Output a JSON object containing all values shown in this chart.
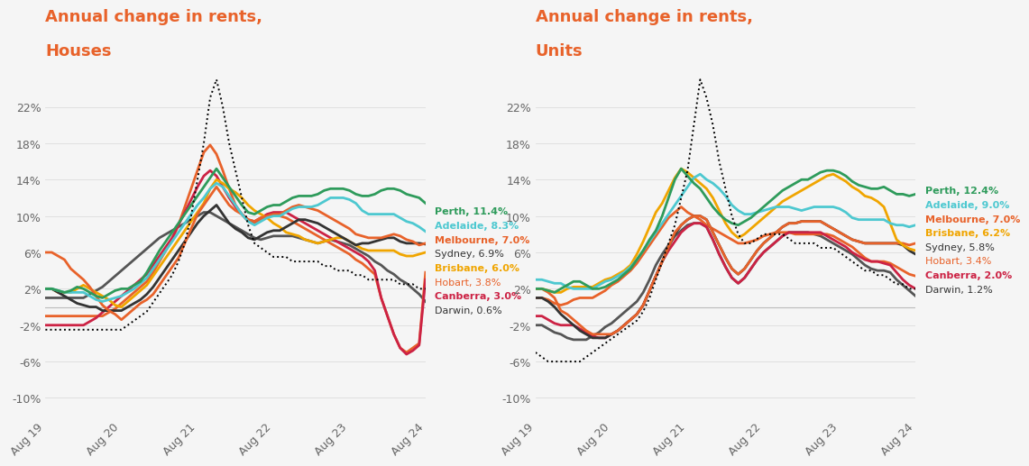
{
  "title_houses": "Annual change in rents,\nHouses",
  "title_units": "Annual change in rents,\nUnits",
  "title_color": "#E8622A",
  "bg_color": "#F5F5F5",
  "x_labels": [
    "Aug 19",
    "Aug 20",
    "Aug 21",
    "Aug 22",
    "Aug 23",
    "Aug 24"
  ],
  "ylim": [
    -12,
    26
  ],
  "yticks": [
    -10,
    -6,
    -2,
    2,
    6,
    10,
    14,
    18,
    22
  ],
  "legend_h": [
    [
      "Perth, 11.4%",
      "#2E9B5B",
      true
    ],
    [
      "Adelaide, 8.3%",
      "#4DC8D0",
      true
    ],
    [
      "Melbourne, 7.0%",
      "#E8622A",
      true
    ],
    [
      "Sydney, 6.9%",
      "#333333",
      false
    ],
    [
      "Brisbane, 6.0%",
      "#F0A500",
      true
    ],
    [
      "Hobart, 3.8%",
      "#E8622A",
      false
    ],
    [
      "Canberra, 3.0%",
      "#CC2244",
      true
    ],
    [
      "Darwin, 0.6%",
      "#333333",
      false
    ]
  ],
  "legend_u": [
    [
      "Perth, 12.4%",
      "#2E9B5B",
      true
    ],
    [
      "Adelaide, 9.0%",
      "#4DC8D0",
      true
    ],
    [
      "Melbourne, 7.0%",
      "#E8622A",
      true
    ],
    [
      "Brisbane, 6.2%",
      "#F0A500",
      true
    ],
    [
      "Sydney, 5.8%",
      "#333333",
      false
    ],
    [
      "Hobart, 3.4%",
      "#E8622A",
      false
    ],
    [
      "Canberra, 2.0%",
      "#CC2244",
      true
    ],
    [
      "Darwin, 1.2%",
      "#333333",
      false
    ]
  ],
  "n_points": 61,
  "houses": {
    "Perth": [
      2.0,
      2.0,
      1.8,
      1.6,
      1.8,
      2.2,
      2.0,
      1.6,
      1.2,
      1.0,
      1.4,
      1.8,
      2.0,
      2.0,
      2.4,
      2.8,
      3.8,
      5.0,
      6.2,
      7.2,
      8.2,
      9.2,
      10.2,
      11.2,
      12.2,
      13.2,
      14.2,
      15.2,
      14.2,
      13.2,
      12.2,
      11.2,
      10.4,
      10.2,
      10.6,
      11.0,
      11.2,
      11.2,
      11.6,
      12.0,
      12.2,
      12.2,
      12.2,
      12.4,
      12.8,
      13.0,
      13.0,
      13.0,
      12.8,
      12.4,
      12.2,
      12.2,
      12.4,
      12.8,
      13.0,
      13.0,
      12.8,
      12.4,
      12.2,
      12.0,
      11.4
    ],
    "Adelaide": [
      2.0,
      2.0,
      1.8,
      1.6,
      1.6,
      1.6,
      1.6,
      1.2,
      0.8,
      0.6,
      0.8,
      1.0,
      1.2,
      1.6,
      2.0,
      2.6,
      3.2,
      4.2,
      5.2,
      6.2,
      7.2,
      8.2,
      9.2,
      10.2,
      11.2,
      12.0,
      13.0,
      13.6,
      13.2,
      12.2,
      11.2,
      10.2,
      9.4,
      9.0,
      9.4,
      9.8,
      10.0,
      10.0,
      10.4,
      10.8,
      11.0,
      11.0,
      11.0,
      11.2,
      11.6,
      12.0,
      12.0,
      12.0,
      11.8,
      11.4,
      10.6,
      10.2,
      10.2,
      10.2,
      10.2,
      10.2,
      9.8,
      9.4,
      9.2,
      8.8,
      8.3
    ],
    "Melbourne": [
      6.0,
      6.0,
      5.6,
      5.2,
      4.2,
      3.6,
      3.0,
      2.2,
      1.2,
      0.2,
      -0.4,
      -0.8,
      -1.4,
      -0.8,
      -0.2,
      0.4,
      0.8,
      1.4,
      2.4,
      3.4,
      4.4,
      5.4,
      7.0,
      8.6,
      10.2,
      11.2,
      12.2,
      13.2,
      12.2,
      11.2,
      10.6,
      10.2,
      9.6,
      9.4,
      9.8,
      10.0,
      10.2,
      10.2,
      10.6,
      11.0,
      11.2,
      11.0,
      10.8,
      10.6,
      10.2,
      9.8,
      9.4,
      9.0,
      8.6,
      8.0,
      7.8,
      7.6,
      7.6,
      7.6,
      7.8,
      8.0,
      7.8,
      7.4,
      7.2,
      6.8,
      7.0
    ],
    "Sydney": [
      2.0,
      2.0,
      1.6,
      1.2,
      0.8,
      0.4,
      0.2,
      0.0,
      0.0,
      -0.4,
      -0.4,
      -0.4,
      -0.4,
      0.0,
      0.4,
      0.8,
      1.4,
      2.2,
      3.2,
      4.2,
      5.2,
      6.2,
      7.2,
      8.2,
      9.2,
      10.0,
      10.6,
      11.2,
      10.2,
      9.2,
      8.6,
      8.2,
      7.6,
      7.4,
      7.8,
      8.2,
      8.4,
      8.4,
      8.8,
      9.2,
      9.6,
      9.6,
      9.4,
      9.2,
      8.8,
      8.4,
      8.0,
      7.6,
      7.2,
      6.8,
      7.0,
      7.0,
      7.2,
      7.4,
      7.6,
      7.6,
      7.2,
      7.0,
      7.0,
      7.0,
      6.9
    ],
    "Brisbane": [
      2.0,
      2.0,
      1.6,
      1.6,
      1.6,
      2.0,
      2.4,
      2.0,
      1.6,
      1.2,
      0.8,
      0.2,
      0.0,
      0.6,
      1.2,
      1.8,
      2.4,
      3.4,
      4.4,
      5.4,
      6.4,
      7.4,
      8.4,
      9.4,
      10.4,
      11.4,
      13.0,
      14.0,
      13.6,
      13.0,
      12.6,
      12.0,
      11.2,
      10.6,
      10.2,
      9.8,
      9.2,
      8.8,
      8.2,
      8.0,
      7.8,
      7.4,
      7.2,
      7.0,
      7.2,
      7.4,
      7.6,
      7.6,
      7.2,
      6.8,
      6.4,
      6.2,
      6.2,
      6.2,
      6.2,
      6.2,
      5.8,
      5.6,
      5.6,
      5.8,
      6.0
    ],
    "Hobart": [
      -1.0,
      -1.0,
      -1.0,
      -1.0,
      -1.0,
      -1.0,
      -1.0,
      -1.0,
      -1.0,
      -1.0,
      -0.6,
      -0.2,
      0.4,
      1.0,
      1.6,
      2.2,
      2.8,
      3.8,
      5.0,
      6.2,
      7.4,
      9.0,
      11.0,
      13.0,
      15.0,
      17.0,
      17.8,
      16.8,
      15.0,
      13.0,
      11.2,
      10.2,
      9.4,
      9.2,
      9.6,
      10.0,
      10.2,
      10.0,
      9.8,
      9.4,
      9.0,
      8.6,
      8.2,
      7.8,
      7.4,
      7.0,
      6.6,
      6.2,
      5.8,
      5.2,
      4.8,
      4.2,
      3.6,
      1.0,
      -1.0,
      -3.0,
      -4.5,
      -5.0,
      -4.5,
      -4.0,
      3.8
    ],
    "Canberra": [
      -2.0,
      -2.0,
      -2.0,
      -2.0,
      -2.0,
      -2.0,
      -2.0,
      -1.6,
      -1.2,
      -0.6,
      0.0,
      0.6,
      1.2,
      1.8,
      2.4,
      3.0,
      3.6,
      4.6,
      5.6,
      6.6,
      7.6,
      9.0,
      10.4,
      11.8,
      13.2,
      14.4,
      15.0,
      14.4,
      13.2,
      12.0,
      11.0,
      10.2,
      9.6,
      9.4,
      9.8,
      10.2,
      10.4,
      10.4,
      10.4,
      10.0,
      9.6,
      9.2,
      8.8,
      8.4,
      8.0,
      7.6,
      7.2,
      6.8,
      6.4,
      6.0,
      5.6,
      5.0,
      4.0,
      1.0,
      -1.0,
      -3.0,
      -4.5,
      -5.2,
      -4.8,
      -4.2,
      3.0
    ],
    "Darwin": [
      1.0,
      1.0,
      1.0,
      1.0,
      1.0,
      1.0,
      1.0,
      1.4,
      1.8,
      2.2,
      2.8,
      3.4,
      4.0,
      4.6,
      5.2,
      5.8,
      6.4,
      7.0,
      7.6,
      8.0,
      8.4,
      8.8,
      9.2,
      9.6,
      10.0,
      10.4,
      10.4,
      10.0,
      9.6,
      9.2,
      8.8,
      8.4,
      8.0,
      7.6,
      7.4,
      7.6,
      7.8,
      7.8,
      7.8,
      7.8,
      7.6,
      7.4,
      7.2,
      7.0,
      7.2,
      7.4,
      7.2,
      7.0,
      6.8,
      6.4,
      6.0,
      5.6,
      5.0,
      4.6,
      4.0,
      3.6,
      3.0,
      2.6,
      2.0,
      1.4,
      0.6
    ]
  },
  "units": {
    "Perth": [
      2.0,
      2.0,
      1.8,
      1.6,
      2.0,
      2.4,
      2.8,
      2.8,
      2.4,
      2.0,
      2.0,
      2.2,
      2.6,
      3.0,
      3.6,
      4.2,
      5.2,
      6.2,
      7.4,
      8.4,
      10.0,
      12.0,
      14.0,
      15.2,
      14.4,
      13.6,
      13.0,
      12.0,
      11.0,
      10.2,
      9.6,
      9.2,
      9.0,
      9.4,
      9.8,
      10.4,
      11.0,
      11.6,
      12.2,
      12.8,
      13.2,
      13.6,
      14.0,
      14.0,
      14.4,
      14.8,
      15.0,
      15.0,
      14.8,
      14.4,
      13.8,
      13.4,
      13.2,
      13.0,
      13.0,
      13.2,
      12.8,
      12.4,
      12.4,
      12.2,
      12.4
    ],
    "Adelaide": [
      3.0,
      3.0,
      2.8,
      2.6,
      2.6,
      2.2,
      2.0,
      2.0,
      2.0,
      2.0,
      2.4,
      2.8,
      3.0,
      3.4,
      3.8,
      4.4,
      5.2,
      6.2,
      7.2,
      8.2,
      9.2,
      10.2,
      11.2,
      12.2,
      13.2,
      14.2,
      14.6,
      14.0,
      13.6,
      13.0,
      12.2,
      11.2,
      10.6,
      10.2,
      10.2,
      10.4,
      10.6,
      10.8,
      11.0,
      11.0,
      11.0,
      10.8,
      10.6,
      10.8,
      11.0,
      11.0,
      11.0,
      11.0,
      10.8,
      10.4,
      9.8,
      9.6,
      9.6,
      9.6,
      9.6,
      9.6,
      9.2,
      9.0,
      9.0,
      8.8,
      9.0
    ],
    "Melbourne": [
      2.0,
      2.0,
      1.6,
      1.0,
      -0.4,
      -0.8,
      -1.4,
      -2.0,
      -2.6,
      -3.0,
      -3.0,
      -3.0,
      -3.0,
      -2.6,
      -2.0,
      -1.4,
      -0.8,
      0.2,
      1.8,
      3.4,
      5.0,
      6.6,
      8.2,
      9.0,
      9.6,
      10.0,
      10.0,
      9.6,
      8.2,
      6.8,
      5.4,
      4.2,
      3.6,
      4.2,
      5.2,
      6.2,
      7.0,
      7.6,
      8.2,
      8.8,
      9.2,
      9.2,
      9.4,
      9.4,
      9.4,
      9.4,
      9.0,
      8.6,
      8.2,
      7.8,
      7.4,
      7.2,
      7.0,
      7.0,
      7.0,
      7.0,
      7.0,
      7.0,
      7.0,
      6.8,
      7.0
    ],
    "Brisbane": [
      2.0,
      2.0,
      1.8,
      1.6,
      1.6,
      2.0,
      2.2,
      2.2,
      2.2,
      2.2,
      2.6,
      3.0,
      3.2,
      3.6,
      4.0,
      4.6,
      5.8,
      7.2,
      8.8,
      10.4,
      11.4,
      12.8,
      14.2,
      15.2,
      14.8,
      14.2,
      13.6,
      13.0,
      12.0,
      10.6,
      9.2,
      8.2,
      7.6,
      8.0,
      8.6,
      9.2,
      9.8,
      10.4,
      11.0,
      11.6,
      12.0,
      12.4,
      12.8,
      13.2,
      13.6,
      14.0,
      14.4,
      14.6,
      14.2,
      13.8,
      13.2,
      12.8,
      12.2,
      12.0,
      11.6,
      11.0,
      9.2,
      7.4,
      6.8,
      6.4,
      6.2
    ],
    "Sydney": [
      1.0,
      1.0,
      0.6,
      0.0,
      -0.8,
      -1.4,
      -2.0,
      -2.6,
      -3.0,
      -3.4,
      -3.4,
      -3.4,
      -3.0,
      -2.6,
      -2.0,
      -1.4,
      -0.8,
      0.2,
      1.8,
      3.4,
      5.0,
      6.6,
      8.0,
      9.0,
      9.6,
      10.0,
      10.0,
      9.6,
      8.2,
      6.8,
      5.4,
      4.2,
      3.6,
      4.2,
      5.2,
      6.2,
      7.0,
      7.6,
      8.2,
      8.8,
      9.2,
      9.2,
      9.4,
      9.4,
      9.4,
      9.4,
      9.0,
      8.6,
      8.2,
      7.8,
      7.4,
      7.2,
      7.0,
      7.0,
      7.0,
      7.0,
      7.0,
      7.0,
      6.8,
      6.2,
      5.8
    ],
    "Hobart": [
      1.0,
      1.0,
      0.8,
      0.4,
      0.2,
      0.4,
      0.8,
      1.0,
      1.0,
      1.0,
      1.4,
      1.8,
      2.4,
      2.8,
      3.4,
      4.0,
      4.8,
      5.8,
      6.8,
      7.8,
      8.8,
      9.8,
      10.4,
      11.0,
      10.4,
      10.0,
      9.6,
      9.0,
      8.6,
      8.2,
      7.8,
      7.4,
      7.0,
      7.0,
      7.2,
      7.4,
      7.8,
      8.0,
      8.2,
      8.2,
      8.2,
      8.0,
      8.0,
      8.0,
      8.0,
      8.0,
      8.0,
      7.8,
      7.4,
      7.0,
      6.6,
      6.0,
      5.4,
      5.0,
      5.0,
      5.0,
      4.8,
      4.4,
      4.0,
      3.6,
      3.4
    ],
    "Canberra": [
      -1.0,
      -1.0,
      -1.4,
      -1.8,
      -2.0,
      -2.0,
      -2.0,
      -2.4,
      -2.8,
      -3.2,
      -3.4,
      -3.4,
      -3.0,
      -2.6,
      -2.0,
      -1.4,
      -0.8,
      0.2,
      1.8,
      3.4,
      5.0,
      6.2,
      7.2,
      8.2,
      8.8,
      9.2,
      9.2,
      8.8,
      7.4,
      5.8,
      4.4,
      3.2,
      2.6,
      3.2,
      4.2,
      5.2,
      6.0,
      6.6,
      7.2,
      7.8,
      8.2,
      8.2,
      8.2,
      8.2,
      8.2,
      8.2,
      7.8,
      7.4,
      7.0,
      6.6,
      6.0,
      5.6,
      5.2,
      5.0,
      5.0,
      4.8,
      4.6,
      3.8,
      3.0,
      2.4,
      2.0
    ],
    "Darwin": [
      -2.0,
      -2.0,
      -2.4,
      -2.8,
      -3.0,
      -3.4,
      -3.6,
      -3.6,
      -3.6,
      -3.2,
      -2.8,
      -2.2,
      -1.8,
      -1.2,
      -0.6,
      0.0,
      0.6,
      1.6,
      3.0,
      4.6,
      5.8,
      6.8,
      7.8,
      8.4,
      9.0,
      9.2,
      9.2,
      8.8,
      7.4,
      5.8,
      4.4,
      3.2,
      2.6,
      3.2,
      4.2,
      5.2,
      6.0,
      6.6,
      7.2,
      7.8,
      8.2,
      8.2,
      8.2,
      8.2,
      8.0,
      7.8,
      7.4,
      7.0,
      6.6,
      6.2,
      5.8,
      5.2,
      4.6,
      4.2,
      4.0,
      4.0,
      3.8,
      3.0,
      2.4,
      1.8,
      1.2
    ]
  },
  "dotted_houses": [
    -2.5,
    -2.5,
    -2.5,
    -2.5,
    -2.5,
    -2.5,
    -2.5,
    -2.5,
    -2.5,
    -2.5,
    -2.5,
    -2.5,
    -2.5,
    -2.0,
    -1.5,
    -1.0,
    -0.5,
    0.5,
    1.5,
    2.5,
    3.5,
    5.0,
    7.0,
    10.0,
    14.0,
    18.0,
    23.0,
    25.0,
    22.0,
    18.0,
    15.0,
    12.0,
    9.0,
    7.0,
    6.5,
    6.0,
    5.5,
    5.5,
    5.5,
    5.0,
    5.0,
    5.0,
    5.0,
    5.0,
    4.5,
    4.5,
    4.0,
    4.0,
    4.0,
    3.5,
    3.5,
    3.0,
    3.0,
    3.0,
    3.0,
    3.0,
    2.5,
    2.5,
    2.5,
    2.0,
    2.0
  ],
  "dotted_units": [
    -5.0,
    -5.5,
    -6.0,
    -6.0,
    -6.0,
    -6.0,
    -6.0,
    -6.0,
    -5.5,
    -5.0,
    -4.5,
    -4.0,
    -3.5,
    -3.0,
    -2.5,
    -2.0,
    -1.5,
    -0.5,
    1.0,
    3.0,
    5.0,
    7.0,
    9.0,
    12.0,
    15.0,
    20.0,
    25.0,
    23.0,
    20.0,
    16.0,
    13.0,
    10.0,
    8.0,
    7.0,
    7.0,
    7.5,
    8.0,
    8.0,
    8.0,
    8.0,
    7.5,
    7.0,
    7.0,
    7.0,
    7.0,
    6.5,
    6.5,
    6.5,
    6.0,
    5.5,
    5.0,
    4.5,
    4.0,
    4.0,
    3.5,
    3.5,
    3.0,
    2.5,
    2.5,
    2.0,
    2.0
  ]
}
